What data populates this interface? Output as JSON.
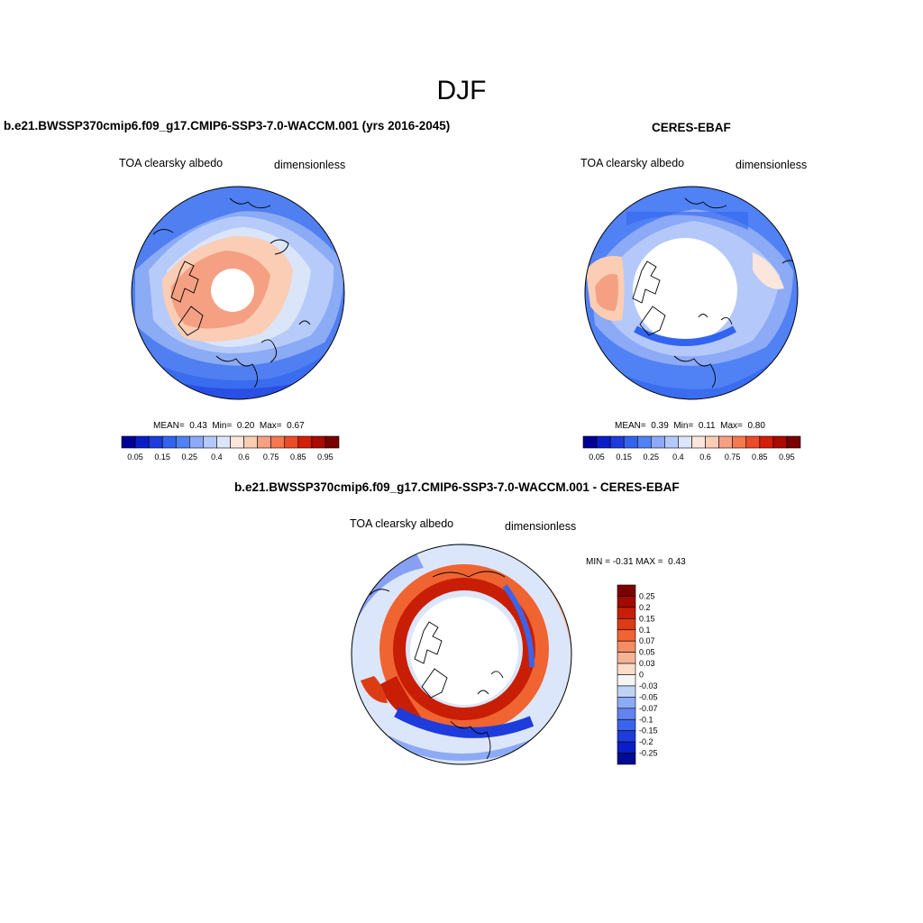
{
  "figure": {
    "season": "DJF"
  },
  "panels": [
    {
      "title": "b.e21.BWSSP370cmip6.f09_g17.CMIP6-SSP3-7.0-WACCM.001 (yrs 2016-2045)",
      "variable": "TOA clearsky albedo",
      "units": "dimensionless",
      "stats": {
        "mean_label": "MEAN=",
        "mean": "0.43",
        "min_label": "Min=",
        "min": "0.20",
        "max_label": "Max=",
        "max": "0.67"
      }
    },
    {
      "title": "CERES-EBAF",
      "variable": "TOA clearsky albedo",
      "units": "dimensionless",
      "stats": {
        "mean_label": "MEAN=",
        "mean": "0.39",
        "min_label": "Min=",
        "min": "0.11",
        "max_label": "Max=",
        "max": "0.80"
      }
    },
    {
      "title": "b.e21.BWSSP370cmip6.f09_g17.CMIP6-SSP3-7.0-WACCM.001 - CERES-EBAF",
      "variable": "TOA clearsky albedo",
      "units": "dimensionless",
      "stats": {
        "min_label": "MIN =",
        "min": "-0.31",
        "max_label": "MAX =",
        "max": "0.43"
      }
    }
  ],
  "colorbars": {
    "horizontal": {
      "tick_labels": [
        "0.05",
        "0.15",
        "0.25",
        "0.4",
        "0.6",
        "0.75",
        "0.85",
        "0.95"
      ],
      "colors": [
        "#000096",
        "#0a1ec8",
        "#1e3cdc",
        "#3264f0",
        "#5082f5",
        "#8caaf5",
        "#b4c8fa",
        "#dce6fa",
        "#fae6dc",
        "#facdb4",
        "#f5a082",
        "#f57850",
        "#eb4b28",
        "#d21e0a",
        "#aa0a00",
        "#780000"
      ]
    },
    "vertical": {
      "tick_labels": [
        "0.25",
        "0.2",
        "0.15",
        "0.1",
        "0.07",
        "0.05",
        "0.03",
        "0",
        "-0.03",
        "-0.05",
        "-0.07",
        "-0.1",
        "-0.15",
        "-0.2",
        "-0.25"
      ],
      "colors": [
        "#7d0000",
        "#a00a00",
        "#c81e05",
        "#dc3c14",
        "#f06432",
        "#f58c64",
        "#f5b496",
        "#fadcc8",
        "#f5f5f5",
        "#bed2f5",
        "#8caaf5",
        "#6482f0",
        "#3c64eb",
        "#1e3cdc",
        "#0a1ec8",
        "#000a96"
      ]
    }
  },
  "chart_data": [
    {
      "type": "heatmap",
      "title": "b.e21.BWSSP370cmip6.f09_g17.CMIP6-SSP3-7.0-WACCM.001 (yrs 2016-2045)",
      "projection": "north polar stereographic",
      "variable": "TOA clearsky albedo",
      "units": "dimensionless",
      "mean": 0.43,
      "min": 0.2,
      "max": 0.67,
      "levels": [
        0.05,
        0.1,
        0.15,
        0.2,
        0.25,
        0.3,
        0.4,
        0.5,
        0.6,
        0.65,
        0.7,
        0.75,
        0.8,
        0.85,
        0.9,
        0.95
      ]
    },
    {
      "type": "heatmap",
      "title": "CERES-EBAF",
      "projection": "north polar stereographic",
      "variable": "TOA clearsky albedo",
      "units": "dimensionless",
      "mean": 0.39,
      "min": 0.11,
      "max": 0.8,
      "levels": [
        0.05,
        0.1,
        0.15,
        0.2,
        0.25,
        0.3,
        0.4,
        0.5,
        0.6,
        0.65,
        0.7,
        0.75,
        0.8,
        0.85,
        0.9,
        0.95
      ]
    },
    {
      "type": "heatmap",
      "title": "b.e21.BWSSP370cmip6.f09_g17.CMIP6-SSP3-7.0-WACCM.001 - CERES-EBAF",
      "projection": "north polar stereographic",
      "variable": "TOA clearsky albedo",
      "units": "dimensionless",
      "min": -0.31,
      "max": 0.43,
      "levels": [
        -0.25,
        -0.2,
        -0.15,
        -0.1,
        -0.07,
        -0.05,
        -0.03,
        0,
        0.03,
        0.05,
        0.07,
        0.1,
        0.15,
        0.2,
        0.25
      ]
    }
  ]
}
